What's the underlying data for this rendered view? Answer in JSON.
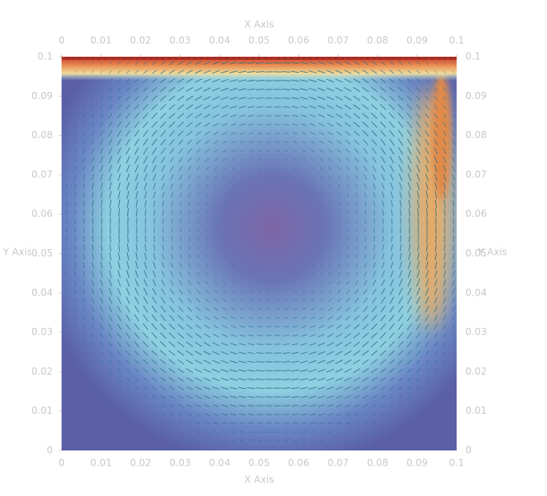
{
  "chart_data": {
    "type": "quiver",
    "xlabel": "X Axis",
    "ylabel": "Y Axis",
    "xlim": [
      0,
      0.1
    ],
    "ylim": [
      0,
      0.1
    ],
    "xticks": [
      0,
      0.01,
      0.02,
      0.03,
      0.04,
      0.05,
      0.06,
      0.07,
      0.08,
      0.09,
      0.1
    ],
    "yticks": [
      0,
      0.01,
      0.02,
      0.03,
      0.04,
      0.05,
      0.06,
      0.07,
      0.08,
      0.09,
      0.1
    ]
  }
}
